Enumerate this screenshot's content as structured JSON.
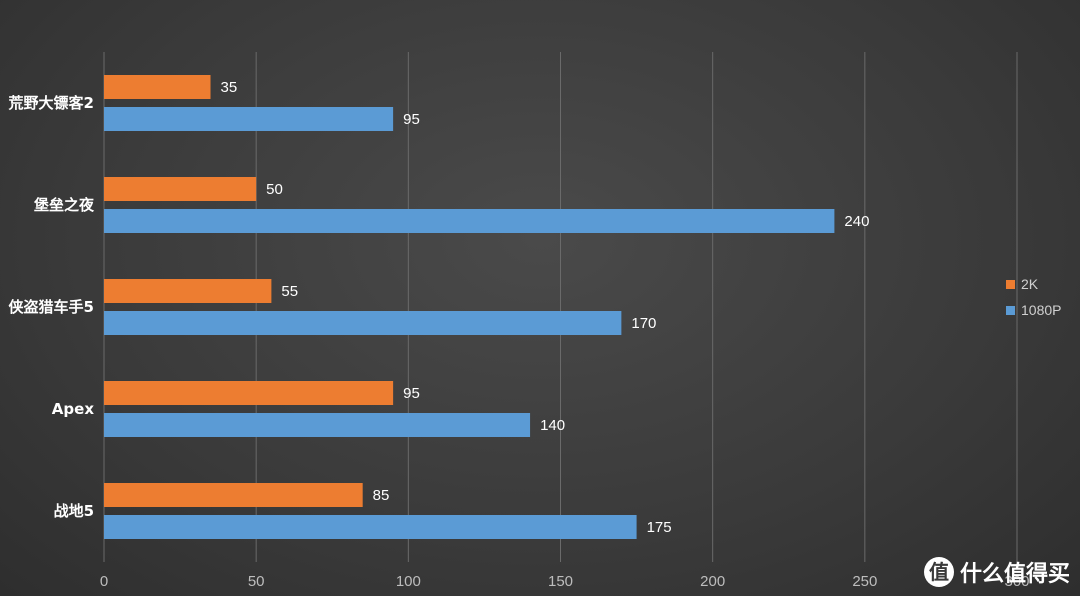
{
  "chart_data": {
    "type": "bar",
    "orientation": "horizontal",
    "categories": [
      "荒野大镖客2",
      "堡垒之夜",
      "侠盗猎车手5",
      "Apex",
      "战地5"
    ],
    "series": [
      {
        "name": "2K",
        "color": "#ed7d31",
        "values": [
          35,
          50,
          55,
          95,
          85
        ]
      },
      {
        "name": "1080P",
        "color": "#5b9bd5",
        "values": [
          95,
          240,
          170,
          140,
          175
        ]
      }
    ],
    "x_ticks": [
      0,
      50,
      100,
      150,
      200,
      250,
      300
    ],
    "xlim": [
      0,
      300
    ],
    "grid": true,
    "legend": "right"
  },
  "watermark": {
    "icon": "值",
    "text": "什么值得买"
  }
}
